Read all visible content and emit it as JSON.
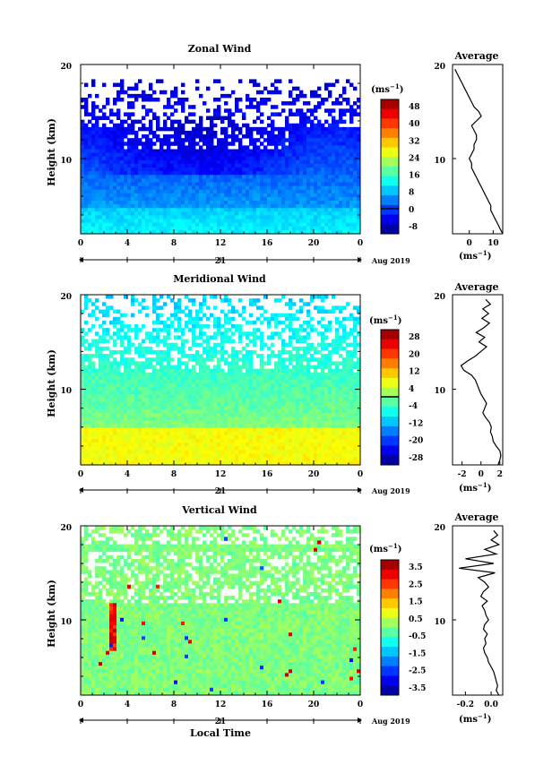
{
  "chart_data": [
    {
      "id": "zonal",
      "type": "heatmap",
      "title": "Zonal Wind",
      "ylabel": "Height (km)",
      "xlabel": "",
      "x_ticks": [
        "0",
        "4",
        "8",
        "12",
        "16",
        "20",
        "0"
      ],
      "x_range": [
        0,
        24
      ],
      "y_ticks": [
        "20",
        "10"
      ],
      "y_range": [
        2,
        20
      ],
      "day_label": "21",
      "month_label": "Aug 2019",
      "colorbar": {
        "unit": "(ms",
        "unit_exp": "−1",
        "unit_close": ")",
        "labels": [
          "48",
          "40",
          "32",
          "24",
          "16",
          "8",
          "0",
          "-8"
        ],
        "range": [
          -8,
          48
        ]
      },
      "average": {
        "title": "Average",
        "x_ticks": [
          "0",
          "10"
        ],
        "x_range": [
          -7,
          14
        ],
        "y_ticks": [
          "20",
          "10"
        ],
        "unit": "(ms",
        "unit_exp": "−1",
        "unit_close": ")",
        "heights": [
          19.5,
          19,
          18.5,
          18,
          17.5,
          17,
          16.5,
          16,
          15.5,
          15,
          14.5,
          14,
          13.5,
          13,
          12.5,
          12,
          11.5,
          11,
          10.5,
          10,
          9.5,
          9,
          8.5,
          8,
          7.5,
          7,
          6.5,
          6,
          5.5,
          5,
          4.5,
          4,
          3.5,
          3,
          2.5,
          2
        ],
        "values": [
          -6,
          -5,
          -4,
          -3,
          -2,
          -1,
          0,
          1,
          2,
          4,
          5,
          3,
          1,
          2,
          3,
          3,
          2,
          2,
          1,
          0,
          1,
          1,
          2,
          3,
          4,
          5,
          6,
          7,
          8,
          9,
          9,
          10,
          11,
          12,
          13,
          14
        ]
      }
    },
    {
      "id": "meridional",
      "type": "heatmap",
      "title": "Meridional Wind",
      "ylabel": "Height (km)",
      "xlabel": "",
      "x_ticks": [
        "0",
        "4",
        "8",
        "12",
        "16",
        "20",
        "0"
      ],
      "x_range": [
        0,
        24
      ],
      "y_ticks": [
        "20",
        "10"
      ],
      "y_range": [
        2,
        20
      ],
      "day_label": "21",
      "month_label": "Aug 2019",
      "colorbar": {
        "unit": "(ms",
        "unit_exp": "−1",
        "unit_close": ")",
        "labels": [
          "28",
          "20",
          "12",
          "4",
          "-4",
          "-12",
          "-20",
          "-28"
        ],
        "range": [
          -28,
          28
        ]
      },
      "average": {
        "title": "Average",
        "x_ticks": [
          "-2",
          "0",
          "2"
        ],
        "x_range": [
          -3,
          2.3
        ],
        "y_ticks": [
          "20",
          "10"
        ],
        "unit": "(ms",
        "unit_exp": "−1",
        "unit_close": ")",
        "heights": [
          19.5,
          19,
          18.5,
          18,
          17.5,
          17,
          16.5,
          16,
          15.5,
          15,
          14.5,
          14,
          13.5,
          13,
          12.5,
          12,
          11.5,
          11,
          10.5,
          10,
          9.5,
          9,
          8.5,
          8,
          7.5,
          7,
          6.5,
          6,
          5.5,
          5,
          4.5,
          4,
          3.5,
          3,
          2.5,
          2
        ],
        "values": [
          0.5,
          1.0,
          0.2,
          0.8,
          0.1,
          0.9,
          0.3,
          -0.5,
          0.4,
          -0.2,
          0.6,
          0.0,
          -0.6,
          -1.4,
          -2.1,
          -1.8,
          -1.0,
          -0.6,
          -0.4,
          -0.2,
          0.0,
          0.3,
          0.6,
          0.4,
          0.2,
          0.5,
          0.9,
          1.1,
          1.0,
          1.2,
          1.3,
          1.6,
          2.0,
          2.1,
          2.0,
          1.8
        ]
      }
    },
    {
      "id": "vertical",
      "type": "heatmap",
      "title": "Vertical Wind",
      "ylabel": "Height (km)",
      "xlabel": "Local Time",
      "x_ticks": [
        "0",
        "4",
        "8",
        "12",
        "16",
        "20",
        "0"
      ],
      "x_range": [
        0,
        24
      ],
      "y_ticks": [
        "20",
        "10"
      ],
      "y_range": [
        2,
        20
      ],
      "day_label": "21",
      "month_label": "Aug 2019",
      "colorbar": {
        "unit": "(ms",
        "unit_exp": "−1",
        "unit_close": ")",
        "labels": [
          "3.5",
          "2.5",
          "1.5",
          "0.5",
          "-0.5",
          "-1.5",
          "-2.5",
          "-3.5"
        ],
        "range": [
          -4,
          4
        ]
      },
      "average": {
        "title": "Average",
        "x_ticks": [
          "-0.2",
          "0.0"
        ],
        "x_range": [
          -0.3,
          0.09
        ],
        "y_ticks": [
          "20",
          "10"
        ],
        "unit": "(ms",
        "unit_exp": "−1",
        "unit_close": ")",
        "heights": [
          19.5,
          19,
          18.5,
          18,
          17.5,
          17,
          16.5,
          16,
          15.5,
          15,
          14.5,
          14,
          13.5,
          13,
          12.5,
          12,
          11.5,
          11,
          10.5,
          10,
          9.5,
          9,
          8.5,
          8,
          7.5,
          7,
          6.5,
          6,
          5.5,
          5,
          4.5,
          4,
          3.5,
          3,
          2.5,
          2
        ],
        "values": [
          0.02,
          0.05,
          0.0,
          0.06,
          -0.05,
          0.04,
          -0.2,
          0.02,
          -0.25,
          0.03,
          -0.1,
          -0.05,
          -0.02,
          -0.06,
          -0.08,
          -0.03,
          -0.07,
          -0.05,
          -0.04,
          -0.02,
          -0.05,
          -0.06,
          -0.03,
          -0.05,
          -0.04,
          -0.06,
          -0.05,
          -0.03,
          -0.02,
          0.0,
          0.02,
          0.03,
          0.04,
          0.05,
          0.04,
          0.06
        ]
      }
    }
  ]
}
